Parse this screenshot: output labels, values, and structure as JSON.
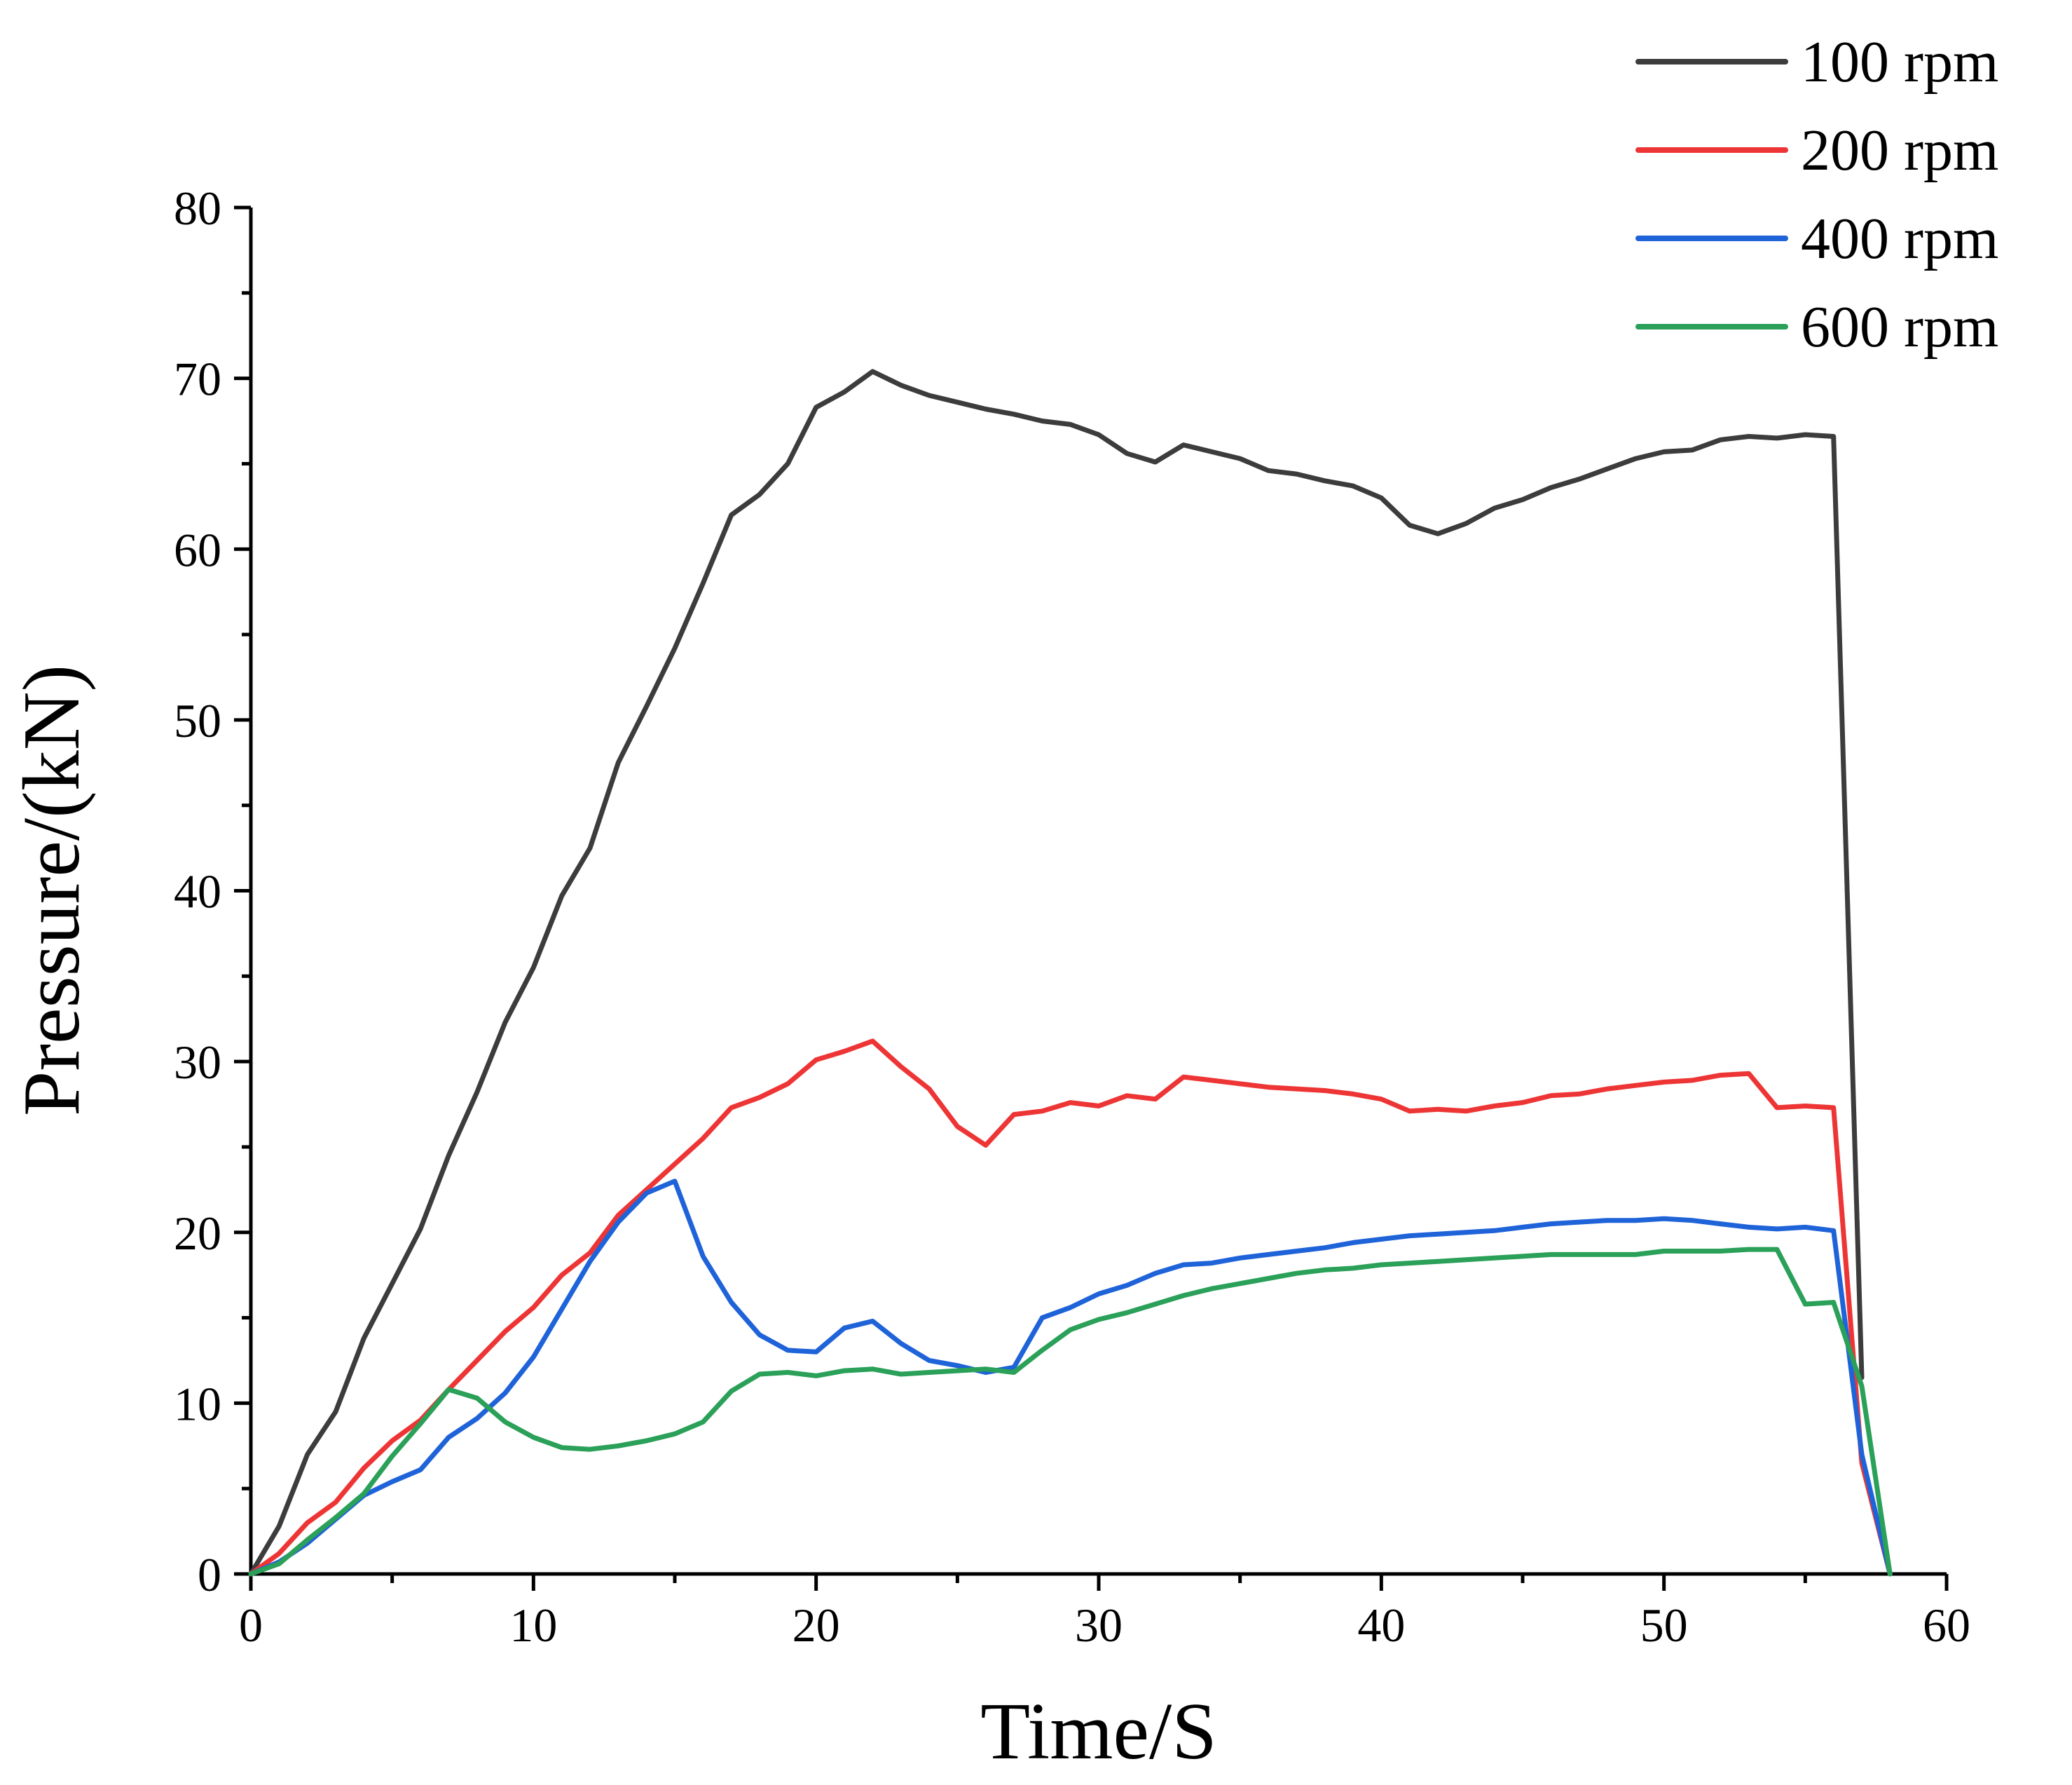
{
  "chart_data": {
    "type": "line",
    "title": "",
    "xlabel": "Time/S",
    "ylabel": "Pressure/(kN)",
    "xlim": [
      0,
      60
    ],
    "ylim": [
      0,
      80
    ],
    "xticks": [
      0,
      10,
      20,
      30,
      40,
      50,
      60
    ],
    "yticks": [
      0,
      10,
      20,
      30,
      40,
      50,
      60,
      70,
      80
    ],
    "xtick_labels": [
      "0",
      "10",
      "20",
      "30",
      "40",
      "50",
      "60"
    ],
    "ytick_labels": [
      "0",
      "10",
      "20",
      "30",
      "40",
      "50",
      "60",
      "70",
      "80"
    ],
    "grid": false,
    "legend": "top-right",
    "series": [
      {
        "name": "100 rpm",
        "color": "#3c3c3c",
        "x": [
          0,
          1,
          2,
          3,
          4,
          5,
          6,
          7,
          8,
          9,
          10,
          11,
          12,
          13,
          14,
          15,
          16,
          17,
          18,
          19,
          20,
          21,
          22,
          23,
          24,
          25,
          26,
          27,
          28,
          29,
          30,
          31,
          32,
          33,
          34,
          35,
          36,
          37,
          38,
          39,
          40,
          41,
          42,
          43,
          44,
          45,
          46,
          47,
          48,
          49,
          50,
          51,
          52,
          53,
          54,
          55,
          56,
          57
        ],
        "values": [
          0,
          2.8,
          7.0,
          9.5,
          13.8,
          17.0,
          20.2,
          24.5,
          28.2,
          32.3,
          35.5,
          39.7,
          42.5,
          47.5,
          50.8,
          54.2,
          58.0,
          62.0,
          63.2,
          65.0,
          68.3,
          69.2,
          70.4,
          69.6,
          69.0,
          68.6,
          68.2,
          67.9,
          67.5,
          67.3,
          66.7,
          65.6,
          65.1,
          66.1,
          65.7,
          65.3,
          64.6,
          64.4,
          64.0,
          63.7,
          63.0,
          61.4,
          60.9,
          61.5,
          62.4,
          62.9,
          63.6,
          64.1,
          64.7,
          65.3,
          65.7,
          65.8,
          66.4,
          66.6,
          66.5,
          66.7,
          66.6,
          11.5
        ]
      },
      {
        "name": "200 rpm",
        "color": "#ee3535",
        "x": [
          0,
          1,
          2,
          3,
          4,
          5,
          6,
          7,
          8,
          9,
          10,
          11,
          12,
          13,
          14,
          15,
          16,
          17,
          18,
          19,
          20,
          21,
          22,
          23,
          24,
          25,
          26,
          27,
          28,
          29,
          30,
          31,
          32,
          33,
          34,
          35,
          36,
          37,
          38,
          39,
          40,
          41,
          42,
          43,
          44,
          45,
          46,
          47,
          48,
          49,
          50,
          51,
          52,
          53,
          54,
          55,
          56,
          57,
          58
        ],
        "values": [
          0,
          1.2,
          3.0,
          4.2,
          6.2,
          7.8,
          9.0,
          10.8,
          12.5,
          14.2,
          15.6,
          17.5,
          18.8,
          21.0,
          22.5,
          24.0,
          25.5,
          27.3,
          27.9,
          28.7,
          30.1,
          30.6,
          31.2,
          29.7,
          28.4,
          26.2,
          25.1,
          26.9,
          27.1,
          27.6,
          27.4,
          28.0,
          27.8,
          29.1,
          28.9,
          28.7,
          28.5,
          28.4,
          28.3,
          28.1,
          27.8,
          27.1,
          27.2,
          27.1,
          27.4,
          27.6,
          28.0,
          28.1,
          28.4,
          28.6,
          28.8,
          28.9,
          29.2,
          29.3,
          27.3,
          27.4,
          27.3,
          6.5,
          0
        ]
      },
      {
        "name": "400 rpm",
        "color": "#1f63d9",
        "x": [
          0,
          1,
          2,
          3,
          4,
          5,
          6,
          7,
          8,
          9,
          10,
          11,
          12,
          13,
          14,
          15,
          16,
          17,
          18,
          19,
          20,
          21,
          22,
          23,
          24,
          25,
          26,
          27,
          28,
          29,
          30,
          31,
          32,
          33,
          34,
          35,
          36,
          37,
          38,
          39,
          40,
          41,
          42,
          43,
          44,
          45,
          46,
          47,
          48,
          49,
          50,
          51,
          52,
          53,
          54,
          55,
          56,
          57,
          58
        ],
        "values": [
          0,
          0.7,
          1.8,
          3.2,
          4.6,
          5.4,
          6.1,
          8.0,
          9.1,
          10.6,
          12.7,
          15.5,
          18.3,
          20.6,
          22.3,
          23.0,
          18.6,
          15.9,
          14.0,
          13.1,
          13.0,
          14.4,
          14.8,
          13.5,
          12.5,
          12.2,
          11.8,
          12.1,
          15.0,
          15.6,
          16.4,
          16.9,
          17.6,
          18.1,
          18.2,
          18.5,
          18.7,
          18.9,
          19.1,
          19.4,
          19.6,
          19.8,
          19.9,
          20.0,
          20.1,
          20.3,
          20.5,
          20.6,
          20.7,
          20.7,
          20.8,
          20.7,
          20.5,
          20.3,
          20.2,
          20.3,
          20.1,
          7.0,
          0
        ]
      },
      {
        "name": "600 rpm",
        "color": "#2aa059",
        "x": [
          0,
          1,
          2,
          3,
          4,
          5,
          6,
          7,
          8,
          9,
          10,
          11,
          12,
          13,
          14,
          15,
          16,
          17,
          18,
          19,
          20,
          21,
          22,
          23,
          24,
          25,
          26,
          27,
          28,
          29,
          30,
          31,
          32,
          33,
          34,
          35,
          36,
          37,
          38,
          39,
          40,
          41,
          42,
          43,
          44,
          45,
          46,
          47,
          48,
          49,
          50,
          51,
          52,
          53,
          54,
          55,
          56,
          57,
          58
        ],
        "values": [
          0,
          0.6,
          2.0,
          3.3,
          4.7,
          6.9,
          8.8,
          10.8,
          10.3,
          8.9,
          8.0,
          7.4,
          7.3,
          7.5,
          7.8,
          8.2,
          8.9,
          10.7,
          11.7,
          11.8,
          11.6,
          11.9,
          12.0,
          11.7,
          11.8,
          11.9,
          12.0,
          11.8,
          13.1,
          14.3,
          14.9,
          15.3,
          15.8,
          16.3,
          16.7,
          17.0,
          17.3,
          17.6,
          17.8,
          17.9,
          18.1,
          18.2,
          18.3,
          18.4,
          18.5,
          18.6,
          18.7,
          18.7,
          18.7,
          18.7,
          18.9,
          18.9,
          18.9,
          19.0,
          19.0,
          15.8,
          15.9,
          11.0,
          0
        ]
      }
    ]
  }
}
